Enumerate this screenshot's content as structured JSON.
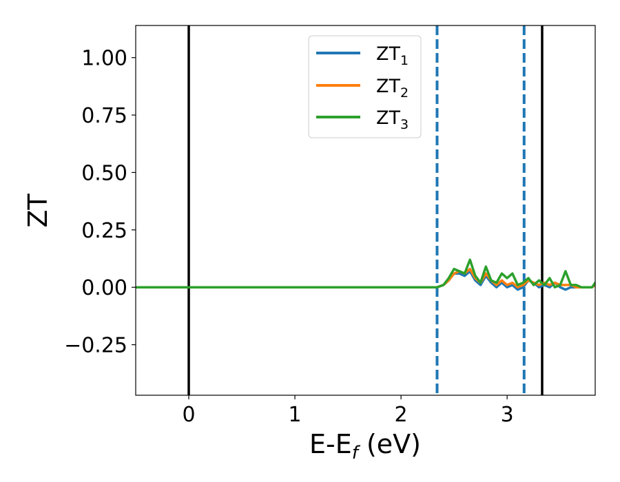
{
  "chart_data": {
    "type": "line",
    "title": "",
    "xlabel": "E-E",
    "xlabel_sub": "f",
    "xlabel_unit": " (eV)",
    "ylabel": "ZT",
    "xlim": [
      -0.5,
      3.83
    ],
    "ylim": [
      -0.47,
      1.14
    ],
    "xticks": [
      0,
      1,
      2,
      3
    ],
    "xtick_labels": [
      "0",
      "1",
      "2",
      "3"
    ],
    "yticks": [
      -0.25,
      0.0,
      0.25,
      0.5,
      0.75,
      1.0
    ],
    "ytick_labels": [
      "−0.25",
      "0.00",
      "0.25",
      "0.50",
      "0.75",
      "1.00"
    ],
    "grid": false,
    "legend_position": "top-center",
    "vertical_lines": [
      {
        "x": 0.0,
        "style": "solid",
        "color": "#000000"
      },
      {
        "x": 3.33,
        "style": "solid",
        "color": "#000000"
      },
      {
        "x": 2.34,
        "style": "dashed",
        "color": "#1f77b4"
      },
      {
        "x": 3.16,
        "style": "dashed",
        "color": "#1f77b4"
      }
    ],
    "series": [
      {
        "name": "ZT",
        "name_sub": "1",
        "color": "#1f77b4",
        "x": [
          -0.5,
          2.34,
          2.4,
          2.45,
          2.5,
          2.55,
          2.6,
          2.65,
          2.7,
          2.75,
          2.8,
          2.85,
          2.9,
          2.95,
          3.0,
          3.05,
          3.1,
          3.15,
          3.2,
          3.25,
          3.3,
          3.35,
          3.4,
          3.45,
          3.5,
          3.55,
          3.6,
          3.65,
          3.7,
          3.75,
          3.8,
          3.83
        ],
        "y": [
          0.0,
          0.0,
          0.01,
          0.03,
          0.06,
          0.06,
          0.05,
          0.07,
          0.03,
          0.01,
          0.05,
          0.02,
          0.0,
          0.02,
          0.0,
          0.01,
          -0.01,
          0.0,
          0.03,
          0.02,
          0.0,
          0.01,
          0.0,
          0.02,
          0.0,
          -0.01,
          0.0,
          0.0,
          0.0,
          0.0,
          0.0,
          0.01
        ]
      },
      {
        "name": "ZT",
        "name_sub": "2",
        "color": "#ff7f0e",
        "x": [
          -0.5,
          2.34,
          2.4,
          2.45,
          2.5,
          2.55,
          2.6,
          2.65,
          2.7,
          2.75,
          2.8,
          2.85,
          2.9,
          2.95,
          3.0,
          3.05,
          3.1,
          3.15,
          3.2,
          3.25,
          3.3,
          3.35,
          3.4,
          3.45,
          3.5,
          3.55,
          3.6,
          3.65,
          3.7,
          3.75,
          3.8,
          3.83
        ],
        "y": [
          0.0,
          0.0,
          0.01,
          0.03,
          0.06,
          0.07,
          0.06,
          0.08,
          0.04,
          0.02,
          0.06,
          0.03,
          0.01,
          0.03,
          0.01,
          0.02,
          0.0,
          0.01,
          0.03,
          0.02,
          0.01,
          0.02,
          0.01,
          0.02,
          0.01,
          0.01,
          0.01,
          0.0,
          0.0,
          0.0,
          0.0,
          0.01
        ]
      },
      {
        "name": "ZT",
        "name_sub": "3",
        "color": "#2ca02c",
        "x": [
          -0.5,
          2.34,
          2.4,
          2.45,
          2.5,
          2.55,
          2.6,
          2.65,
          2.7,
          2.75,
          2.8,
          2.85,
          2.9,
          2.95,
          3.0,
          3.05,
          3.1,
          3.15,
          3.2,
          3.25,
          3.3,
          3.35,
          3.4,
          3.45,
          3.5,
          3.55,
          3.6,
          3.65,
          3.7,
          3.75,
          3.8,
          3.83
        ],
        "y": [
          0.0,
          0.0,
          0.01,
          0.04,
          0.08,
          0.07,
          0.06,
          0.12,
          0.05,
          0.02,
          0.09,
          0.03,
          0.02,
          0.06,
          0.04,
          0.06,
          0.01,
          0.02,
          0.04,
          0.01,
          0.03,
          0.01,
          0.04,
          0.0,
          0.01,
          0.07,
          0.01,
          0.01,
          0.0,
          0.0,
          0.0,
          0.02
        ]
      }
    ]
  }
}
